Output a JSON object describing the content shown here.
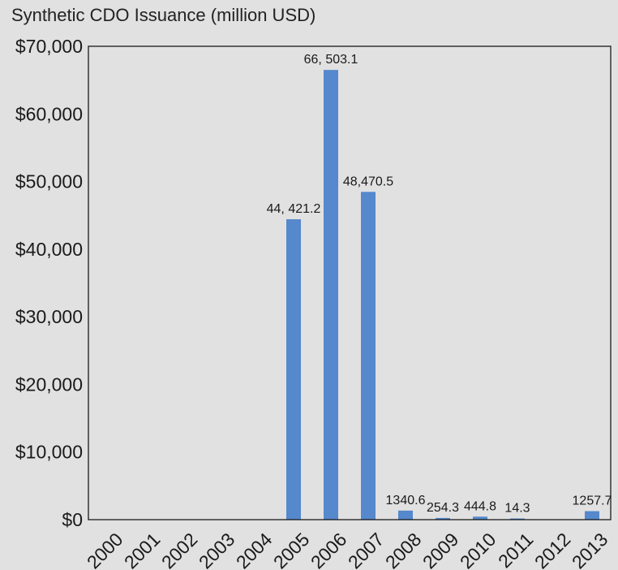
{
  "chart_data": {
    "type": "bar",
    "title": "Synthetic CDO Issuance (million USD)",
    "xlabel": "",
    "ylabel": "",
    "categories": [
      "2000",
      "2001",
      "2002",
      "2003",
      "2004",
      "2005",
      "2006",
      "2007",
      "2008",
      "2009",
      "2010",
      "2011",
      "2012",
      "2013"
    ],
    "values": [
      0,
      0,
      0,
      0,
      0,
      44421.2,
      66503.1,
      48470.5,
      1340.6,
      254.3,
      444.8,
      14.3,
      0,
      1257.7
    ],
    "data_labels": [
      "",
      "",
      "",
      "",
      "",
      "44, 421.2",
      "66, 503.1",
      "48,470.5",
      "1340.6",
      "254.3",
      "444.8",
      "14.3",
      "",
      "1257.7"
    ],
    "ylim": [
      0,
      70000
    ],
    "y_ticks": [
      0,
      10000,
      20000,
      30000,
      40000,
      50000,
      60000,
      70000
    ],
    "y_tick_labels": [
      "$0",
      "$10,000",
      "$20,000",
      "$30,000",
      "$40,000",
      "$50,000",
      "$60,000",
      "$70,000"
    ],
    "grid": false,
    "legend": "none",
    "bar_color": "#5588cc",
    "background_color": "#e1e1e1"
  }
}
